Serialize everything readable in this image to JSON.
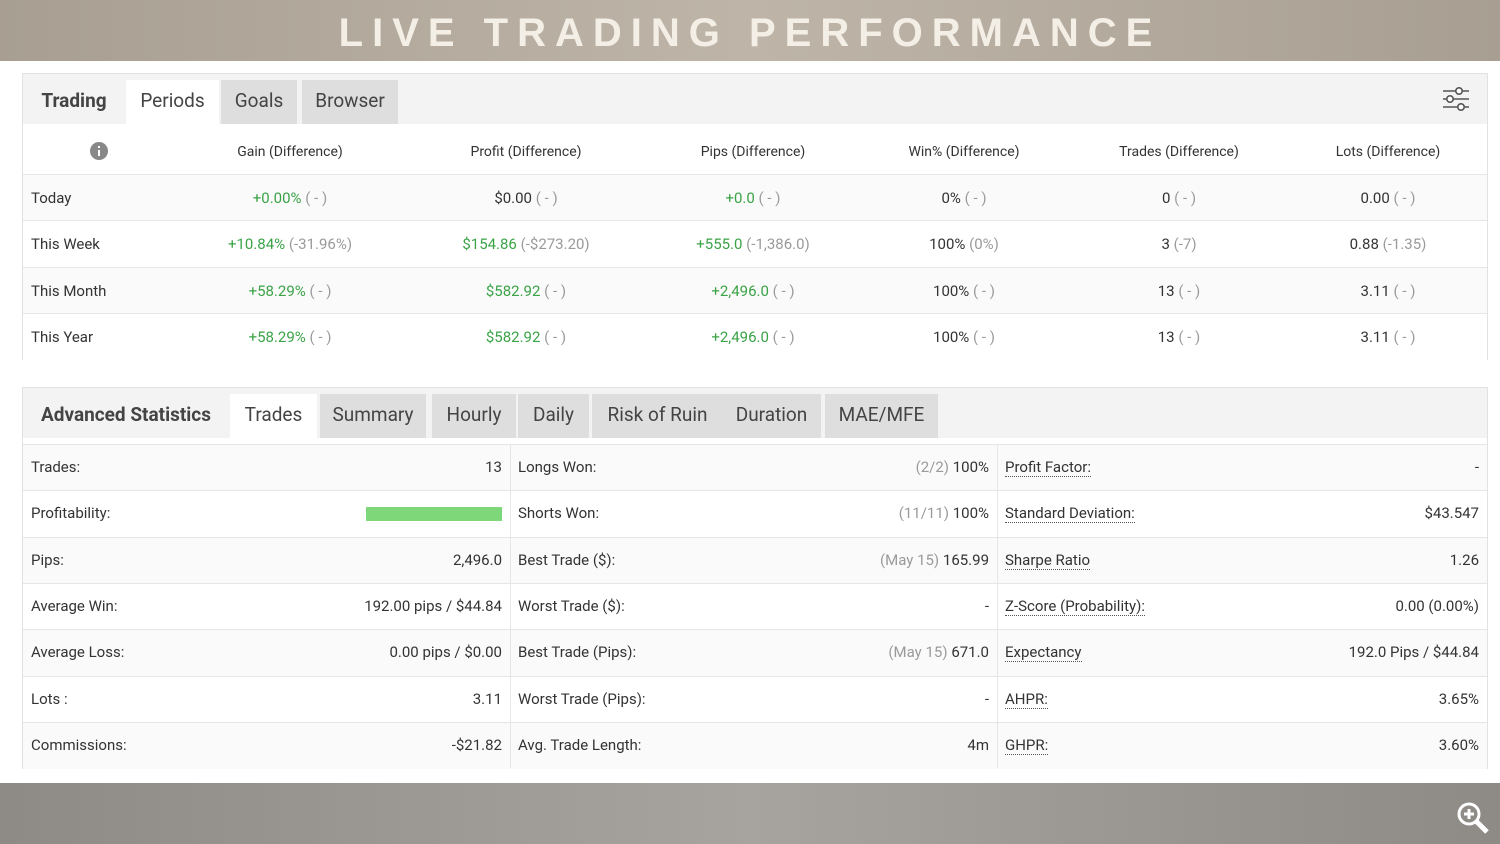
{
  "header": {
    "title": "LIVE TRADING PERFORMANCE"
  },
  "periods": {
    "tabs": [
      "Trading",
      "Periods",
      "Goals",
      "Browser"
    ],
    "columns": [
      "Gain (Difference)",
      "Profit (Difference)",
      "Pips (Difference)",
      "Win% (Difference)",
      "Trades (Difference)",
      "Lots (Difference)"
    ],
    "rows": [
      {
        "label": "Today",
        "cells": [
          {
            "value": "+0.00%",
            "diff": "( - )",
            "color": "#3aa346"
          },
          {
            "value": "$0.00",
            "diff": "( - )"
          },
          {
            "value": "+0.0",
            "diff": "( - )",
            "color": "#3aa346"
          },
          {
            "value": "0%",
            "diff": "( - )"
          },
          {
            "value": "0",
            "diff": "( - )"
          },
          {
            "value": "0.00",
            "diff": "( - )"
          }
        ]
      },
      {
        "label": "This Week",
        "cells": [
          {
            "value": "+10.84%",
            "diff": "(-31.96%)",
            "color": "#3aa346"
          },
          {
            "value": "$154.86",
            "diff": "(-$273.20)",
            "color": "#3aa346"
          },
          {
            "value": "+555.0",
            "diff": "(-1,386.0)",
            "color": "#3aa346"
          },
          {
            "value": "100%",
            "diff": "(0%)"
          },
          {
            "value": "3",
            "diff": "(-7)"
          },
          {
            "value": "0.88",
            "diff": "(-1.35)"
          }
        ]
      },
      {
        "label": "This Month",
        "cells": [
          {
            "value": "+58.29%",
            "diff": "( - )",
            "color": "#3aa346"
          },
          {
            "value": "$582.92",
            "diff": "( - )",
            "color": "#3aa346"
          },
          {
            "value": "+2,496.0",
            "diff": "( - )",
            "color": "#3aa346"
          },
          {
            "value": "100%",
            "diff": "( - )"
          },
          {
            "value": "13",
            "diff": "( - )"
          },
          {
            "value": "3.11",
            "diff": "( - )"
          }
        ]
      },
      {
        "label": "This Year",
        "cells": [
          {
            "value": "+58.29%",
            "diff": "( - )",
            "color": "#3aa346"
          },
          {
            "value": "$582.92",
            "diff": "( - )",
            "color": "#3aa346"
          },
          {
            "value": "+2,496.0",
            "diff": "( - )",
            "color": "#3aa346"
          },
          {
            "value": "100%",
            "diff": "( - )"
          },
          {
            "value": "13",
            "diff": "( - )"
          },
          {
            "value": "3.11",
            "diff": "( - )"
          }
        ]
      }
    ]
  },
  "advanced": {
    "tabs": [
      "Advanced Statistics",
      "Trades",
      "Summary",
      "Hourly",
      "Daily",
      "Risk of Ruin",
      "Duration",
      "MAE/MFE"
    ],
    "columns": [
      [
        {
          "label": "Trades:",
          "value": "13"
        },
        {
          "label": "Profitability:"
        },
        {
          "label": "Pips:",
          "value": "2,496.0"
        },
        {
          "label": "Average Win:",
          "value": "192.00 pips / $44.84"
        },
        {
          "label": "Average Loss:",
          "value": "0.00 pips / $0.00"
        },
        {
          "label": "Lots :",
          "value": "3.11"
        },
        {
          "label": "Commissions:",
          "value": "-$21.82"
        }
      ],
      [
        {
          "label": "Longs Won:",
          "note": "(2/2)",
          "value": "100%"
        },
        {
          "label": "Shorts Won:",
          "note": "(11/11)",
          "value": "100%"
        },
        {
          "label": "Best Trade ($):",
          "note": "(May 15)",
          "value": "165.99"
        },
        {
          "label": "Worst Trade ($):",
          "value": "-"
        },
        {
          "label": "Best Trade (Pips):",
          "note": "(May 15)",
          "value": "671.0"
        },
        {
          "label": "Worst Trade (Pips):",
          "value": "-"
        },
        {
          "label": "Avg. Trade Length:",
          "value": "4m"
        }
      ],
      [
        {
          "label": "Profit Factor:",
          "value": "-"
        },
        {
          "label": "Standard Deviation:",
          "value": "$43.547"
        },
        {
          "label": "Sharpe Ratio",
          "value": "1.26"
        },
        {
          "label": "Z-Score (Probability):",
          "value": "0.00 (0.00%)"
        },
        {
          "label": "Expectancy",
          "value": "192.0 Pips / $44.84"
        },
        {
          "label": "AHPR:",
          "value": "3.65%"
        },
        {
          "label": "GHPR:",
          "value": "3.60%"
        }
      ]
    ]
  }
}
